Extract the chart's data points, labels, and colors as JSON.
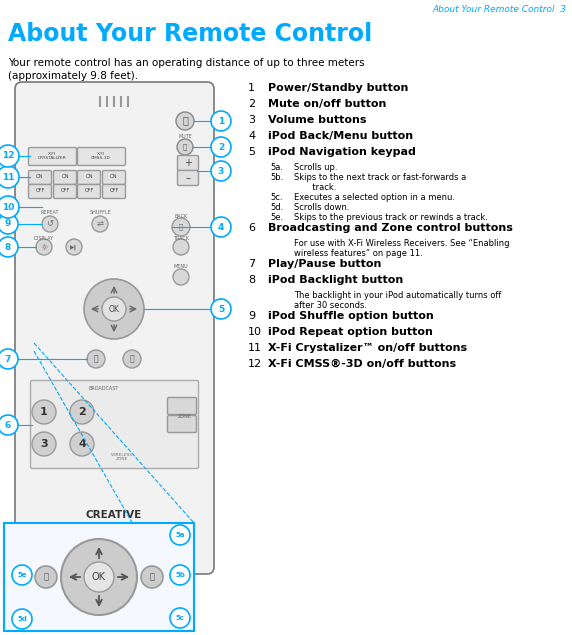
{
  "page_header": "About Your Remote Control  3",
  "title": "About Your Remote Control",
  "intro": "Your remote control has an operating distance of up to three meters\n(approximately 9.8 feet).",
  "bg_color": "#ffffff",
  "title_color": "#00aaff",
  "header_color": "#00aaff",
  "text_color": "#000000",
  "callout_color": "#00aaff",
  "zoom_box_color": "#00aaff",
  "figw": 5.72,
  "figh": 6.35,
  "dpi": 100
}
